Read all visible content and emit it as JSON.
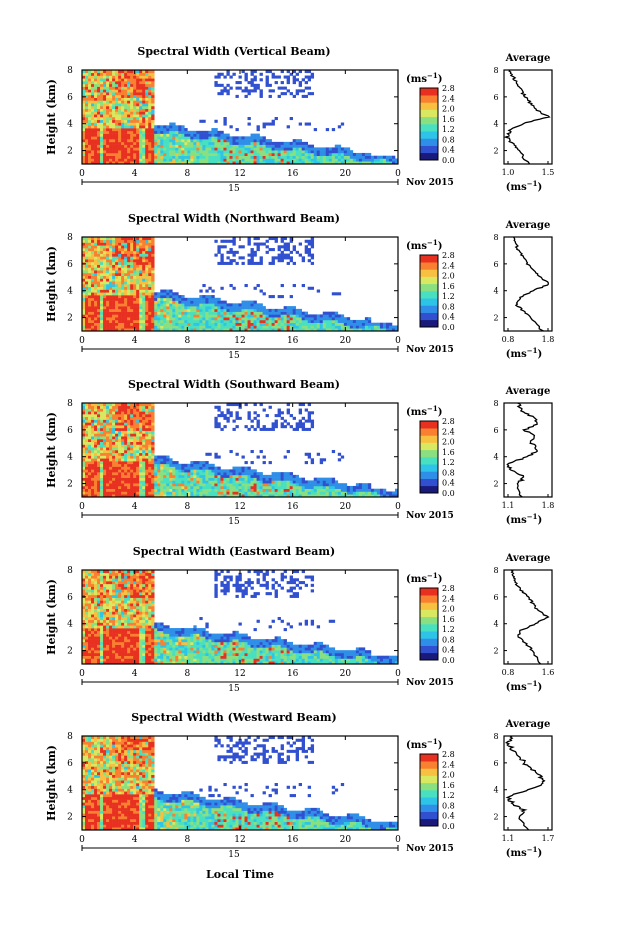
{
  "figure": {
    "xlabel": "Local Time",
    "day_label": "15",
    "month_label": "Nov 2015",
    "unit_label": "(ms",
    "unit_exp": "−1",
    "x_ticks": [
      "0",
      "4",
      "8",
      "12",
      "16",
      "20",
      "0"
    ],
    "colorbar_ticks": [
      "0.0",
      "0.4",
      "0.8",
      "1.2",
      "1.6",
      "2.0",
      "2.4",
      "2.8"
    ],
    "colorbar_ticks_alt": [
      "0.0",
      "0.4",
      "0.8",
      "1.2",
      "1.6",
      "2.0",
      "2.4",
      "2.8"
    ],
    "y_ticks": [
      "2",
      "4",
      "6",
      "8"
    ],
    "ylabel": "Height (km)",
    "avg_title": "Average",
    "avg_unit": "(ms",
    "colormap": [
      "#1a1a7a",
      "#3050d0",
      "#2f8fe8",
      "#2ec4e8",
      "#48e0c0",
      "#8ae080",
      "#d8e860",
      "#f8c040",
      "#f88030",
      "#e83020"
    ]
  },
  "chart_data": [
    {
      "type": "heatmap",
      "title": "Spectral Width (Vertical Beam)",
      "xlabel": "",
      "ylabel": "Height (km)",
      "xlim": [
        0,
        24
      ],
      "ylim": [
        1,
        8
      ],
      "clim": [
        0,
        2.8
      ],
      "avg_xticks": [
        "1.0",
        "1.5"
      ],
      "avg_xlim": [
        1.0,
        1.8
      ],
      "avg_profile": {
        "height": [
          1,
          2,
          2.5,
          3,
          3.5,
          4,
          4.5,
          5,
          5.5,
          6,
          6.5,
          7,
          7.5,
          8
        ],
        "value": [
          1.4,
          1.25,
          1.15,
          1.05,
          1.1,
          1.3,
          1.75,
          1.55,
          1.45,
          1.35,
          1.3,
          1.2,
          1.15,
          1.1
        ]
      }
    },
    {
      "type": "heatmap",
      "title": "Spectral Width (Northward Beam)",
      "xlabel": "",
      "ylabel": "Height (km)",
      "xlim": [
        0,
        24
      ],
      "ylim": [
        1,
        8
      ],
      "clim": [
        0,
        2.8
      ],
      "avg_xticks": [
        "0.8",
        "1.8"
      ],
      "avg_xlim": [
        0.8,
        1.8
      ],
      "avg_profile": {
        "height": [
          1,
          2,
          2.5,
          3,
          3.5,
          4,
          4.5,
          5,
          5.5,
          6,
          6.5,
          7,
          7.5,
          8
        ],
        "value": [
          1.6,
          1.35,
          1.2,
          1.05,
          1.15,
          1.4,
          1.75,
          1.55,
          1.4,
          1.3,
          1.2,
          1.1,
          1.05,
          1.0
        ]
      }
    },
    {
      "type": "heatmap",
      "title": "Spectral Width (Southward Beam)",
      "xlabel": "",
      "ylabel": "Height (km)",
      "xlim": [
        0,
        24
      ],
      "ylim": [
        1,
        8
      ],
      "clim": [
        0,
        2.8
      ],
      "avg_xticks": [
        "1.1",
        "1.8"
      ],
      "avg_xlim": [
        1.1,
        1.8
      ],
      "avg_profile": {
        "height": [
          1,
          2,
          2.5,
          3,
          3.5,
          4,
          4.5,
          5,
          5.5,
          6,
          6.5,
          7,
          7.5,
          8
        ],
        "value": [
          1.35,
          1.3,
          1.4,
          1.2,
          1.15,
          1.45,
          1.6,
          1.5,
          1.55,
          1.4,
          1.6,
          1.5,
          1.35,
          1.3
        ]
      }
    },
    {
      "type": "heatmap",
      "title": "Spectral Width (Eastward Beam)",
      "xlabel": "",
      "ylabel": "Height (km)",
      "xlim": [
        0,
        24
      ],
      "ylim": [
        1,
        8
      ],
      "clim": [
        0,
        2.8
      ],
      "avg_xticks": [
        "0.8",
        "1.6"
      ],
      "avg_xlim": [
        0.8,
        1.8
      ],
      "avg_profile": {
        "height": [
          1,
          2,
          2.5,
          3,
          3.5,
          4,
          4.5,
          5,
          5.5,
          6,
          6.5,
          7,
          7.5,
          8
        ],
        "value": [
          1.55,
          1.4,
          1.25,
          1.1,
          1.15,
          1.45,
          1.7,
          1.5,
          1.4,
          1.3,
          1.15,
          1.05,
          1.0,
          0.95
        ]
      }
    },
    {
      "type": "heatmap",
      "title": "Spectral Width (Westward Beam)",
      "xlabel": "Local Time",
      "ylabel": "Height (km)",
      "xlim": [
        0,
        24
      ],
      "ylim": [
        1,
        8
      ],
      "clim": [
        0,
        2.8
      ],
      "avg_xticks": [
        "1.1",
        "1.7"
      ],
      "avg_xlim": [
        1.1,
        1.7
      ],
      "avg_profile": {
        "height": [
          1,
          2,
          2.5,
          3,
          3.5,
          4,
          4.5,
          5,
          5.5,
          6,
          6.5,
          7,
          7.5,
          8
        ],
        "value": [
          1.4,
          1.3,
          1.35,
          1.2,
          1.15,
          1.4,
          1.6,
          1.55,
          1.45,
          1.35,
          1.3,
          1.2,
          1.15,
          1.2
        ]
      }
    }
  ]
}
